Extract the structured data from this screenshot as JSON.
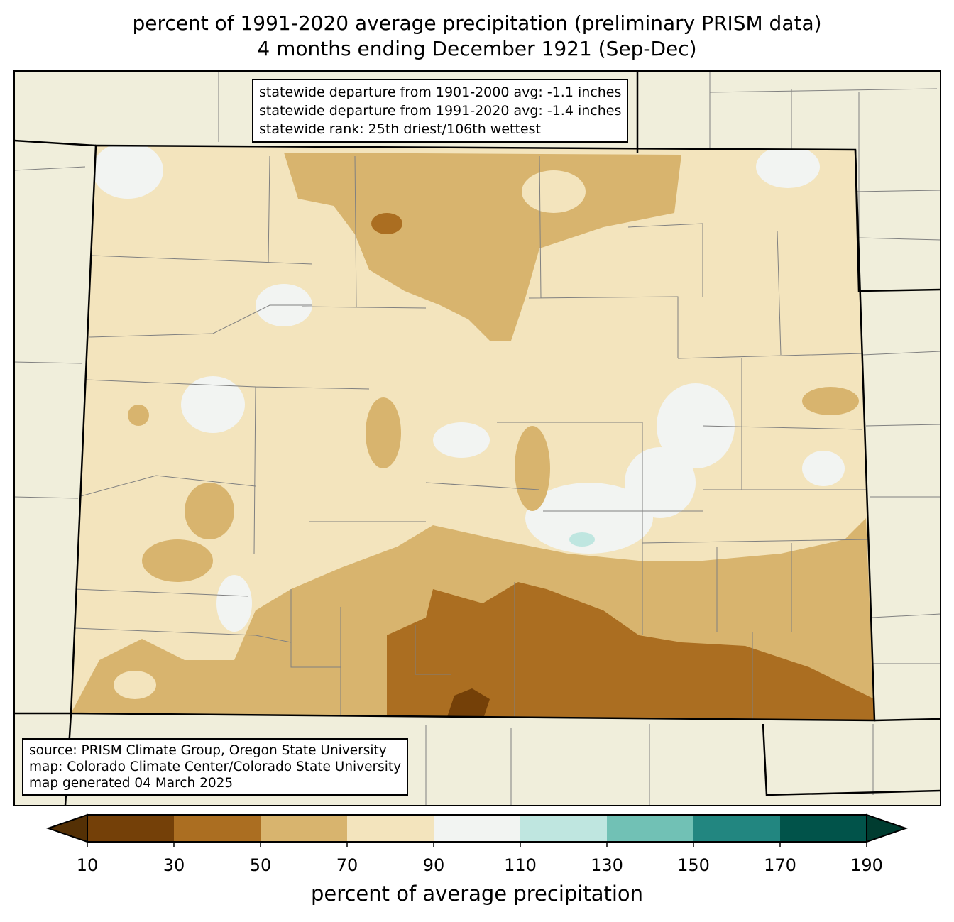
{
  "title": {
    "line1": "percent of 1991-2020 average precipitation (preliminary PRISM data)",
    "line2": "4 months ending December 1921 (Sep-Dec)"
  },
  "stats_box": {
    "line1": "statewide departure from 1901-2000 avg: -1.1 inches",
    "line2": "statewide departure from 1991-2020 avg: -1.4 inches",
    "line3": "statewide rank: 25th driest/106th wettest"
  },
  "source_box": {
    "line1": "source: PRISM Climate Group, Oregon State University",
    "line2": "map: Colorado Climate Center/Colorado State University",
    "line3": "map generated 04 March 2025"
  },
  "colorbar": {
    "label": "percent of average precipitation",
    "ticks": [
      "10",
      "30",
      "50",
      "70",
      "90",
      "110",
      "130",
      "150",
      "170",
      "190"
    ],
    "under_color": "#543005",
    "over_color": "#003c30",
    "colors": [
      "#744008",
      "#ab6e21",
      "#d8b46e",
      "#f3e4bd",
      "#f2f4f2",
      "#bfe6e0",
      "#71c1b5",
      "#228680",
      "#01534a"
    ]
  },
  "colors": {
    "background_land": "#f0eedb",
    "county_lines": "#808080"
  }
}
